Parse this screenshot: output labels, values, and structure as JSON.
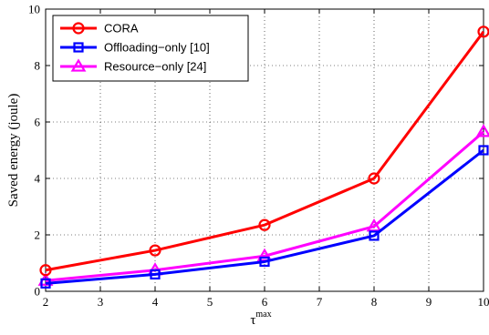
{
  "chart_data": {
    "type": "line",
    "title": "",
    "xlabel": "τ",
    "xlabel_superscript": "max",
    "ylabel": "Saved energy (joule)",
    "xlim": [
      2,
      10
    ],
    "ylim": [
      0,
      10
    ],
    "xticks": [
      2,
      3,
      4,
      5,
      6,
      7,
      8,
      9,
      10
    ],
    "yticks": [
      0,
      2,
      4,
      6,
      8,
      10
    ],
    "grid": true,
    "legend_position": "top-left",
    "x": [
      2,
      4,
      6,
      8,
      10
    ],
    "series": [
      {
        "name": "CORA",
        "values": [
          0.75,
          1.45,
          2.35,
          4.0,
          9.2
        ],
        "color": "#ff0000",
        "marker": "circle"
      },
      {
        "name": "Offloading−only [10]",
        "values": [
          0.28,
          0.6,
          1.05,
          1.97,
          5.0
        ],
        "color": "#0000ff",
        "marker": "square"
      },
      {
        "name": "Resource−only [24]",
        "values": [
          0.38,
          0.75,
          1.25,
          2.3,
          5.65
        ],
        "color": "#ff00ff",
        "marker": "triangle"
      }
    ]
  }
}
